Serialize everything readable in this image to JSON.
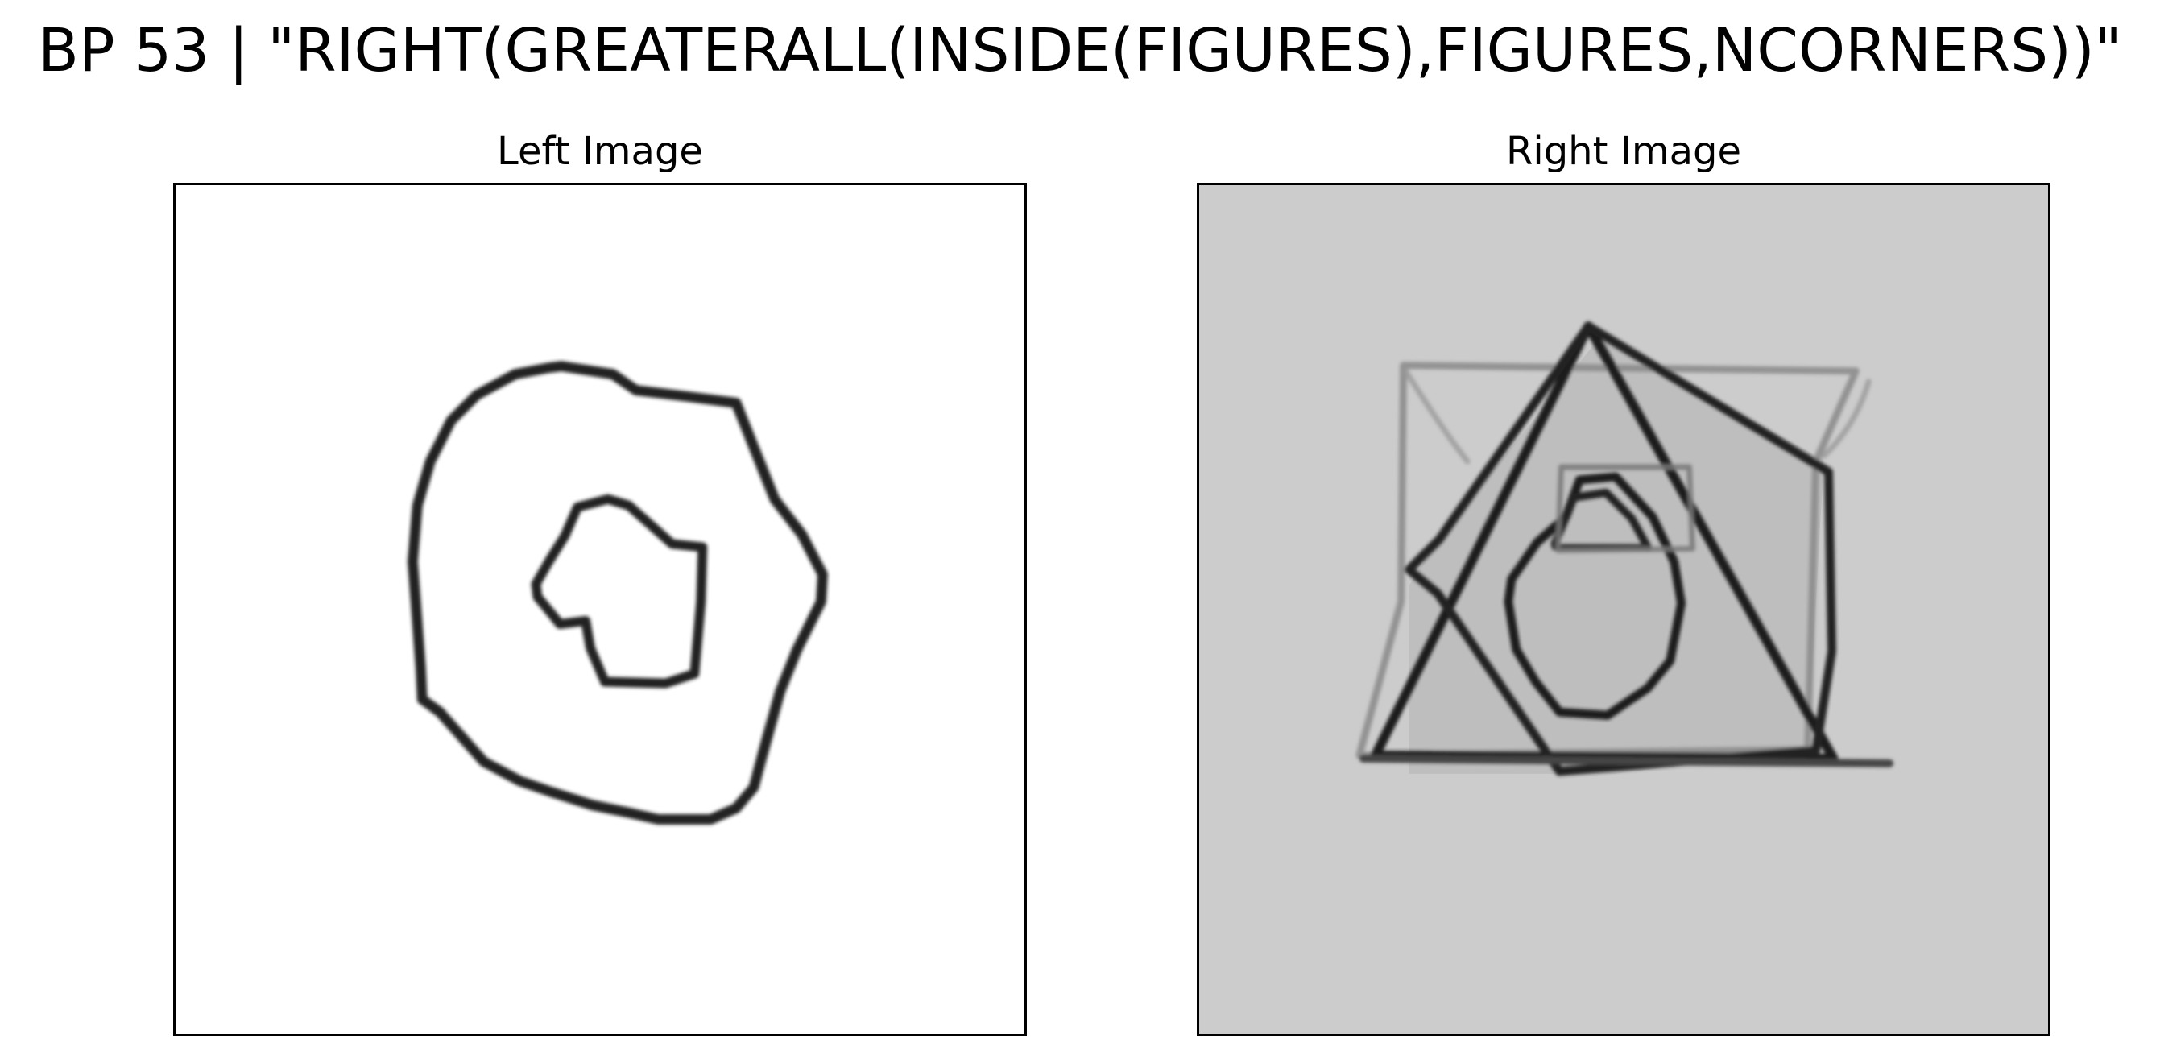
{
  "figure": {
    "title": "BP 53 | \"RIGHT(GREATERALL(INSIDE(FIGURES),FIGURES,NCORNERS))\""
  },
  "panels": {
    "left": {
      "title": "Left Image",
      "background": "#ffffff",
      "stroke": "#1a1a1a"
    },
    "right": {
      "title": "Right Image",
      "background": "#cccccc",
      "stroke": "#1a1a1a"
    }
  }
}
